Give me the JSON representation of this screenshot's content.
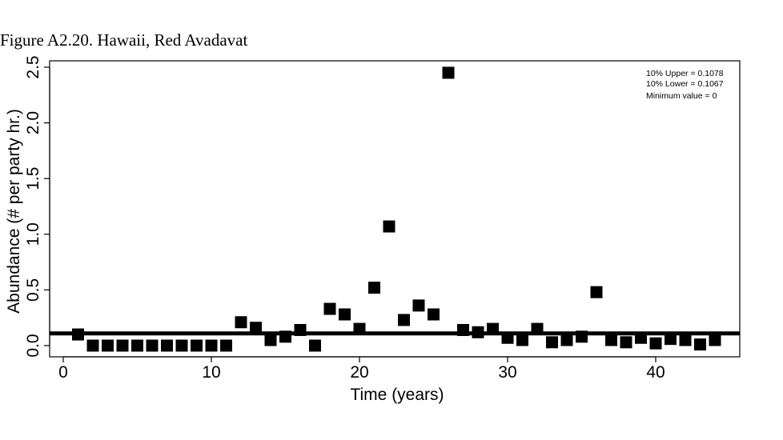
{
  "figure_caption": "Figure A2.20. Hawaii, Red Avadavat",
  "chart_data": {
    "type": "scatter",
    "xlabel": "Time (years)",
    "ylabel": "Abundance (# per party hr.)",
    "xlim": [
      0,
      45
    ],
    "ylim": [
      0,
      2.5
    ],
    "x_ticks": [
      "0",
      "10",
      "20",
      "30",
      "40"
    ],
    "y_ticks": [
      "0.0",
      "0.5",
      "1.0",
      "1.5",
      "2.0",
      "2.5"
    ],
    "x_tick_values": [
      0,
      10,
      20,
      30,
      40
    ],
    "y_tick_values": [
      0,
      0.5,
      1.0,
      1.5,
      2.0,
      2.5
    ],
    "reference_line": 0.11,
    "annotations": [
      "10% Upper =  0.1078",
      "10% Lower =  0.1067",
      "Minimum value =  0"
    ],
    "x": [
      1,
      2,
      3,
      4,
      5,
      6,
      7,
      8,
      9,
      10,
      11,
      12,
      13,
      14,
      15,
      16,
      17,
      18,
      19,
      20,
      21,
      22,
      23,
      24,
      25,
      26,
      27,
      28,
      29,
      30,
      31,
      32,
      33,
      34,
      35,
      36,
      37,
      38,
      39,
      40,
      41,
      42,
      43,
      44
    ],
    "y": [
      0.1,
      0,
      0,
      0,
      0,
      0,
      0,
      0,
      0,
      0,
      0,
      0.21,
      0.16,
      0.05,
      0.08,
      0.14,
      0,
      0.33,
      0.28,
      0.15,
      0.52,
      1.07,
      0.23,
      0.36,
      0.28,
      2.45,
      0.14,
      0.12,
      0.15,
      0.07,
      0.05,
      0.15,
      0.03,
      0.05,
      0.08,
      0.48,
      0.05,
      0.03,
      0.07,
      0.02,
      0.06,
      0.05,
      0.01,
      0.05
    ],
    "marker": "square",
    "color": "#000000"
  }
}
